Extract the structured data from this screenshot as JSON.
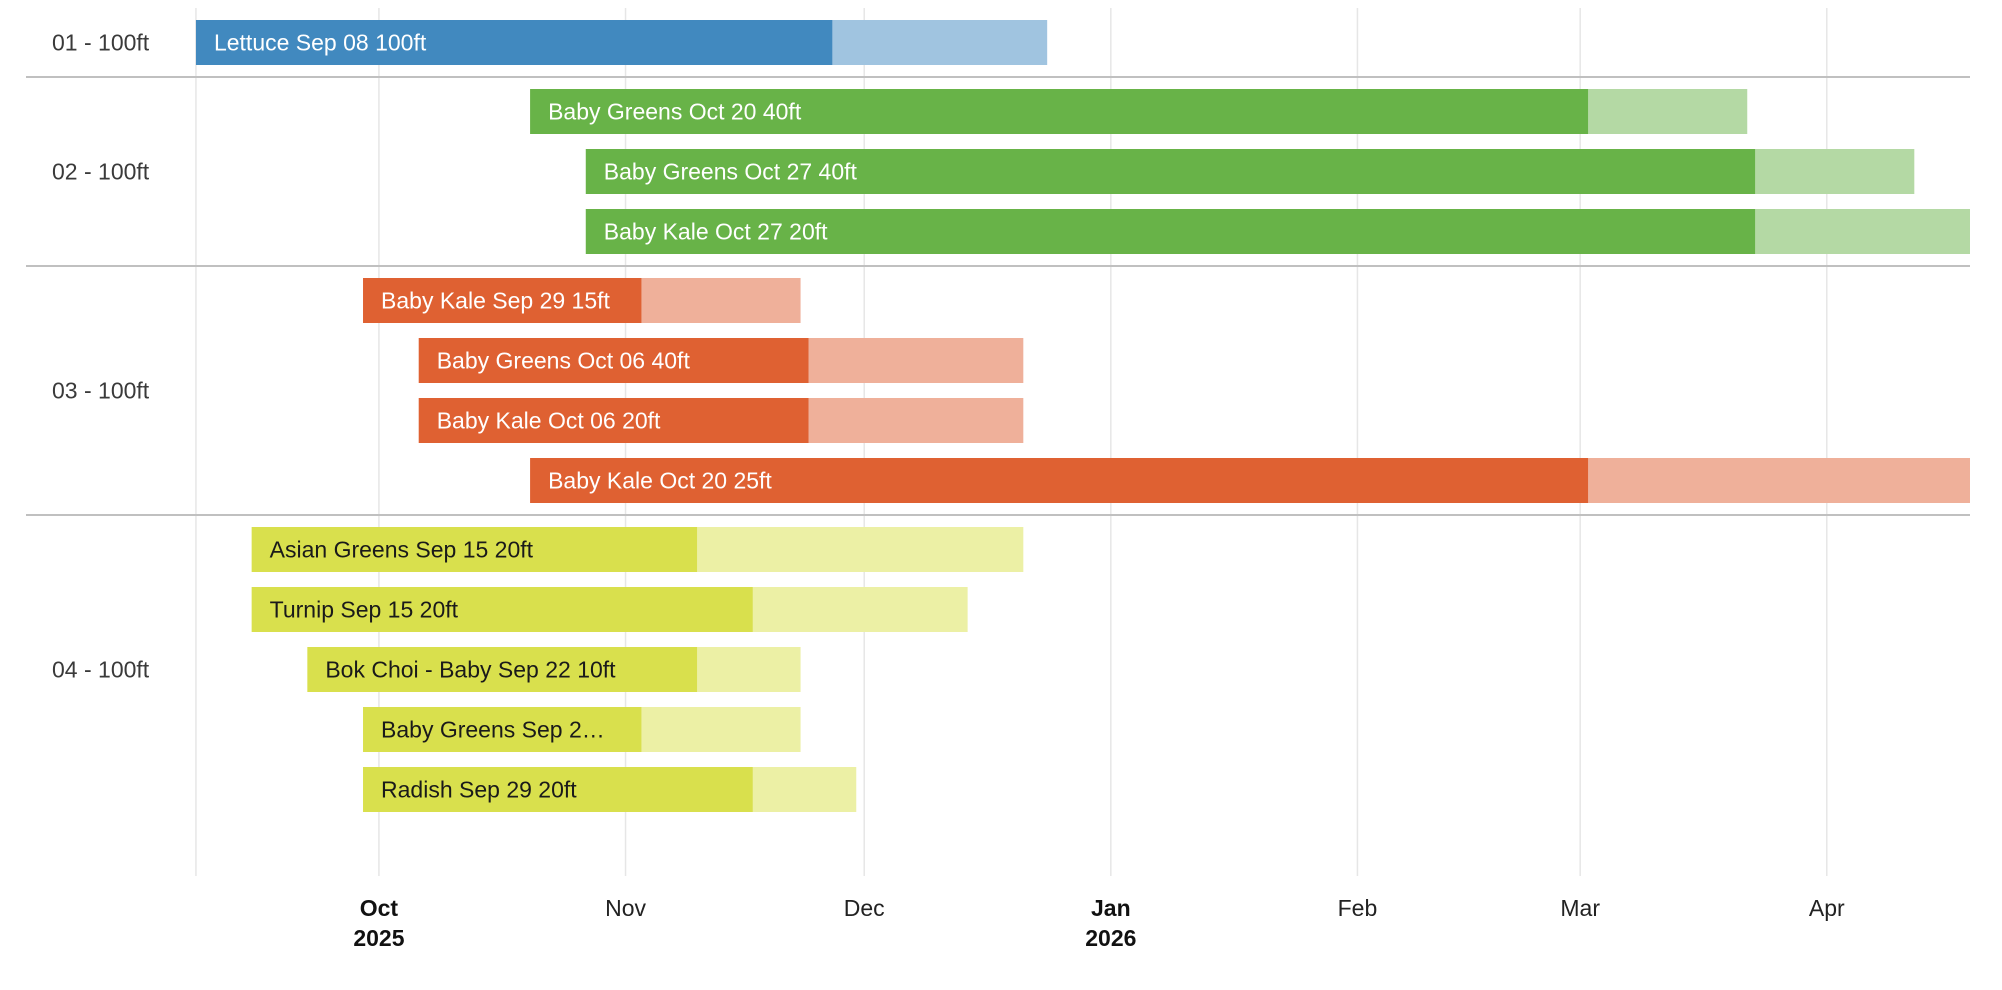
{
  "chart_data": {
    "type": "gantt",
    "title": "",
    "rows": [
      {
        "label": "01 - 100ft",
        "color": "#4189bf",
        "light_color": "#a0c4e0",
        "text_color": "#ffffff",
        "items": [
          {
            "label": "Lettuce Sep 08 100ft",
            "start": "2025-09-08",
            "mid": "2025-11-27",
            "end": "2025-12-24"
          }
        ]
      },
      {
        "label": "02 - 100ft",
        "color": "#68b348",
        "light_color": "#b4d9a4",
        "text_color": "#ffffff",
        "items": [
          {
            "label": "Baby Greens Oct 20 40ft",
            "start": "2025-10-20",
            "mid": "2026-03-02",
            "end": "2026-03-22"
          },
          {
            "label": "Baby Greens Oct 27 40ft",
            "start": "2025-10-27",
            "mid": "2026-03-23",
            "end": "2026-04-12"
          },
          {
            "label": "Baby Kale Oct 27 20ft",
            "start": "2025-10-27",
            "mid": "2026-03-23",
            "end": "2026-04-19"
          }
        ]
      },
      {
        "label": "03 - 100ft",
        "color": "#df6132",
        "light_color": "#efb09a",
        "text_color": "#ffffff",
        "items": [
          {
            "label": "Baby Kale Sep 29 15ft",
            "start": "2025-09-29",
            "mid": "2025-11-03",
            "end": "2025-11-23"
          },
          {
            "label": "Baby Greens Oct 06 40ft",
            "start": "2025-10-06",
            "mid": "2025-11-24",
            "end": "2025-12-21"
          },
          {
            "label": "Baby Kale Oct 06 20ft",
            "start": "2025-10-06",
            "mid": "2025-11-24",
            "end": "2025-12-21"
          },
          {
            "label": "Baby Kale Oct 20 25ft",
            "start": "2025-10-20",
            "mid": "2026-03-02",
            "end": "2026-04-19"
          }
        ]
      },
      {
        "label": "04 - 100ft",
        "color": "#d9e04d",
        "light_color": "#ecf0a5",
        "text_color": "#1a1a1a",
        "items": [
          {
            "label": "Asian Greens Sep 15 20ft",
            "start": "2025-09-15",
            "mid": "2025-11-10",
            "end": "2025-12-21"
          },
          {
            "label": "Turnip Sep 15 20ft",
            "start": "2025-09-15",
            "mid": "2025-11-17",
            "end": "2025-12-14"
          },
          {
            "label": "Bok Choi - Baby Sep 22 10ft",
            "start": "2025-09-22",
            "mid": "2025-11-10",
            "end": "2025-11-23"
          },
          {
            "label": "Baby Greens Sep 2…",
            "start": "2025-09-29",
            "mid": "2025-11-03",
            "end": "2025-11-23"
          },
          {
            "label": "Radish Sep 29 20ft",
            "start": "2025-09-29",
            "mid": "2025-11-17",
            "end": "2025-11-30"
          }
        ]
      }
    ],
    "x_axis": {
      "type": "date",
      "range": [
        "2025-09-07",
        "2026-04-19"
      ],
      "ticks": [
        {
          "date": "2025-09-08",
          "label": "",
          "year": ""
        },
        {
          "date": "2025-10-01",
          "label": "Oct",
          "year": "2025"
        },
        {
          "date": "2025-11-01",
          "label": "Nov",
          "year": ""
        },
        {
          "date": "2025-12-01",
          "label": "Dec",
          "year": ""
        },
        {
          "date": "2026-01-01",
          "label": "Jan",
          "year": "2026"
        },
        {
          "date": "2026-02-01",
          "label": "Feb",
          "year": ""
        },
        {
          "date": "2026-03-01",
          "label": "Mar",
          "year": ""
        },
        {
          "date": "2026-04-01",
          "label": "Apr",
          "year": ""
        }
      ]
    },
    "grid": true,
    "row_separator_color": "#c0c0c0",
    "grid_color": "#e6e6e6"
  }
}
